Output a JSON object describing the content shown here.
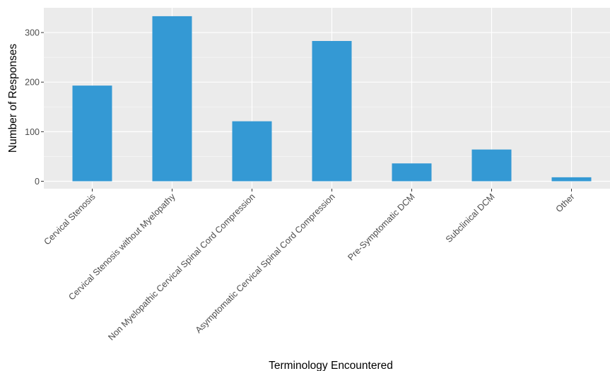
{
  "chart_data": {
    "type": "bar",
    "title": "",
    "xlabel": "Terminology Encountered",
    "ylabel": "Number of Responses",
    "categories": [
      "Cervical Stenosis",
      "Cervical Stenosis without Myelopathy",
      "Non Myelopathic Cervical Spinal Cord Compression",
      "Asymptomatic Cervical Spinal Cord Compression",
      "Pre-Symptomatic DCM",
      "Subclinical DCM",
      "Other"
    ],
    "values": [
      193,
      333,
      121,
      283,
      36,
      64,
      8
    ],
    "ylim": [
      -15,
      350
    ],
    "yticks": [
      0,
      100,
      200,
      300
    ],
    "grid": true,
    "legend": "none",
    "colors": {
      "bar": "#3499d4",
      "panel": "#ebebeb",
      "grid_major": "#ffffff",
      "tick_text": "#4d4d4d"
    }
  }
}
